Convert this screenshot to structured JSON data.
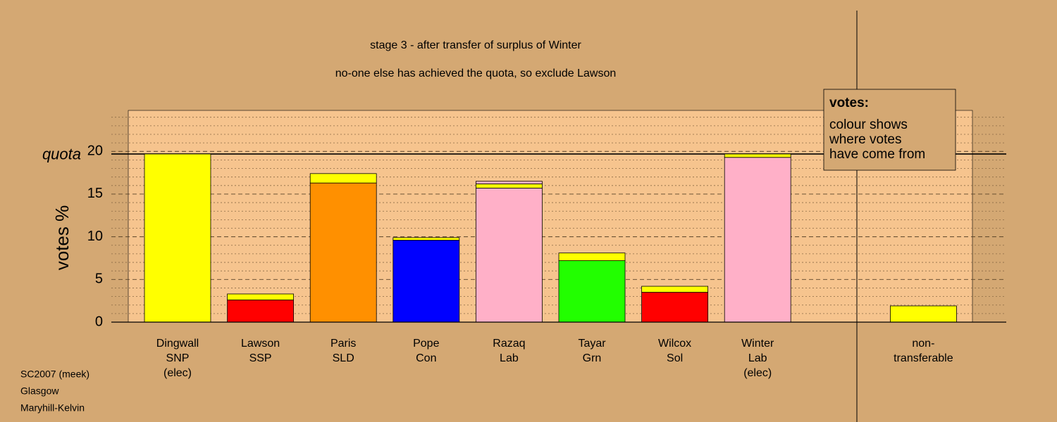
{
  "chart_data": {
    "type": "stacked-bar",
    "title": "stage 3 - after transfer of surplus of Winter",
    "subtitle": "no-one else has achieved the quota, so exclude Lawson",
    "y_label": "votes %",
    "quota": {
      "label": "quota",
      "value": 19.7
    },
    "ylim": [
      0,
      24.8
    ],
    "yticks": [
      0,
      5,
      10,
      15,
      20
    ],
    "minor_yticks": [
      1,
      2,
      3,
      4,
      6,
      7,
      8,
      9,
      11,
      12,
      13,
      14,
      16,
      17,
      18,
      19,
      21,
      22,
      23,
      24
    ],
    "grid": true,
    "categories": [
      [
        "Dingwall",
        "SNP",
        "(elec)"
      ],
      [
        "Lawson",
        "SSP"
      ],
      [
        "Paris",
        "SLD"
      ],
      [
        "Pope",
        "Con"
      ],
      [
        "Razaq",
        "Lab"
      ],
      [
        "Tayar",
        "Grn"
      ],
      [
        "Wilcox",
        "Sol"
      ],
      [
        "Winter",
        "Lab",
        "(elec)"
      ],
      null,
      [
        "non-",
        "transferable"
      ]
    ],
    "stacks": [
      [
        {
          "value": 19.7,
          "color": "#ffff00"
        }
      ],
      [
        {
          "value": 2.6,
          "color": "#ff0000"
        },
        {
          "value": 0.7,
          "color": "#ffff00"
        }
      ],
      [
        {
          "value": 16.3,
          "color": "#ff9000"
        },
        {
          "value": 1.1,
          "color": "#ffff00"
        }
      ],
      [
        {
          "value": 9.6,
          "color": "#0000ff"
        },
        {
          "value": 0.3,
          "color": "#ffff00"
        }
      ],
      [
        {
          "value": 15.7,
          "color": "#ffb0c8"
        },
        {
          "value": 0.5,
          "color": "#ffff00"
        },
        {
          "value": 0.3,
          "color": "#ffb0c8"
        }
      ],
      [
        {
          "value": 7.2,
          "color": "#22ff00"
        },
        {
          "value": 0.9,
          "color": "#ffff00"
        }
      ],
      [
        {
          "value": 3.5,
          "color": "#ff0000"
        },
        {
          "value": 0.7,
          "color": "#ffff00"
        }
      ],
      [
        {
          "value": 19.3,
          "color": "#ffb0c8"
        },
        {
          "value": 0.4,
          "color": "#ffff00"
        }
      ],
      [],
      [
        {
          "value": 1.9,
          "color": "#ffff00"
        }
      ]
    ],
    "legend": {
      "title": "votes:",
      "lines": [
        "colour shows",
        "where votes",
        "have come from"
      ]
    },
    "footer": [
      "SC2007 (meek)",
      "Glasgow",
      "Maryhill-Kelvin"
    ]
  }
}
